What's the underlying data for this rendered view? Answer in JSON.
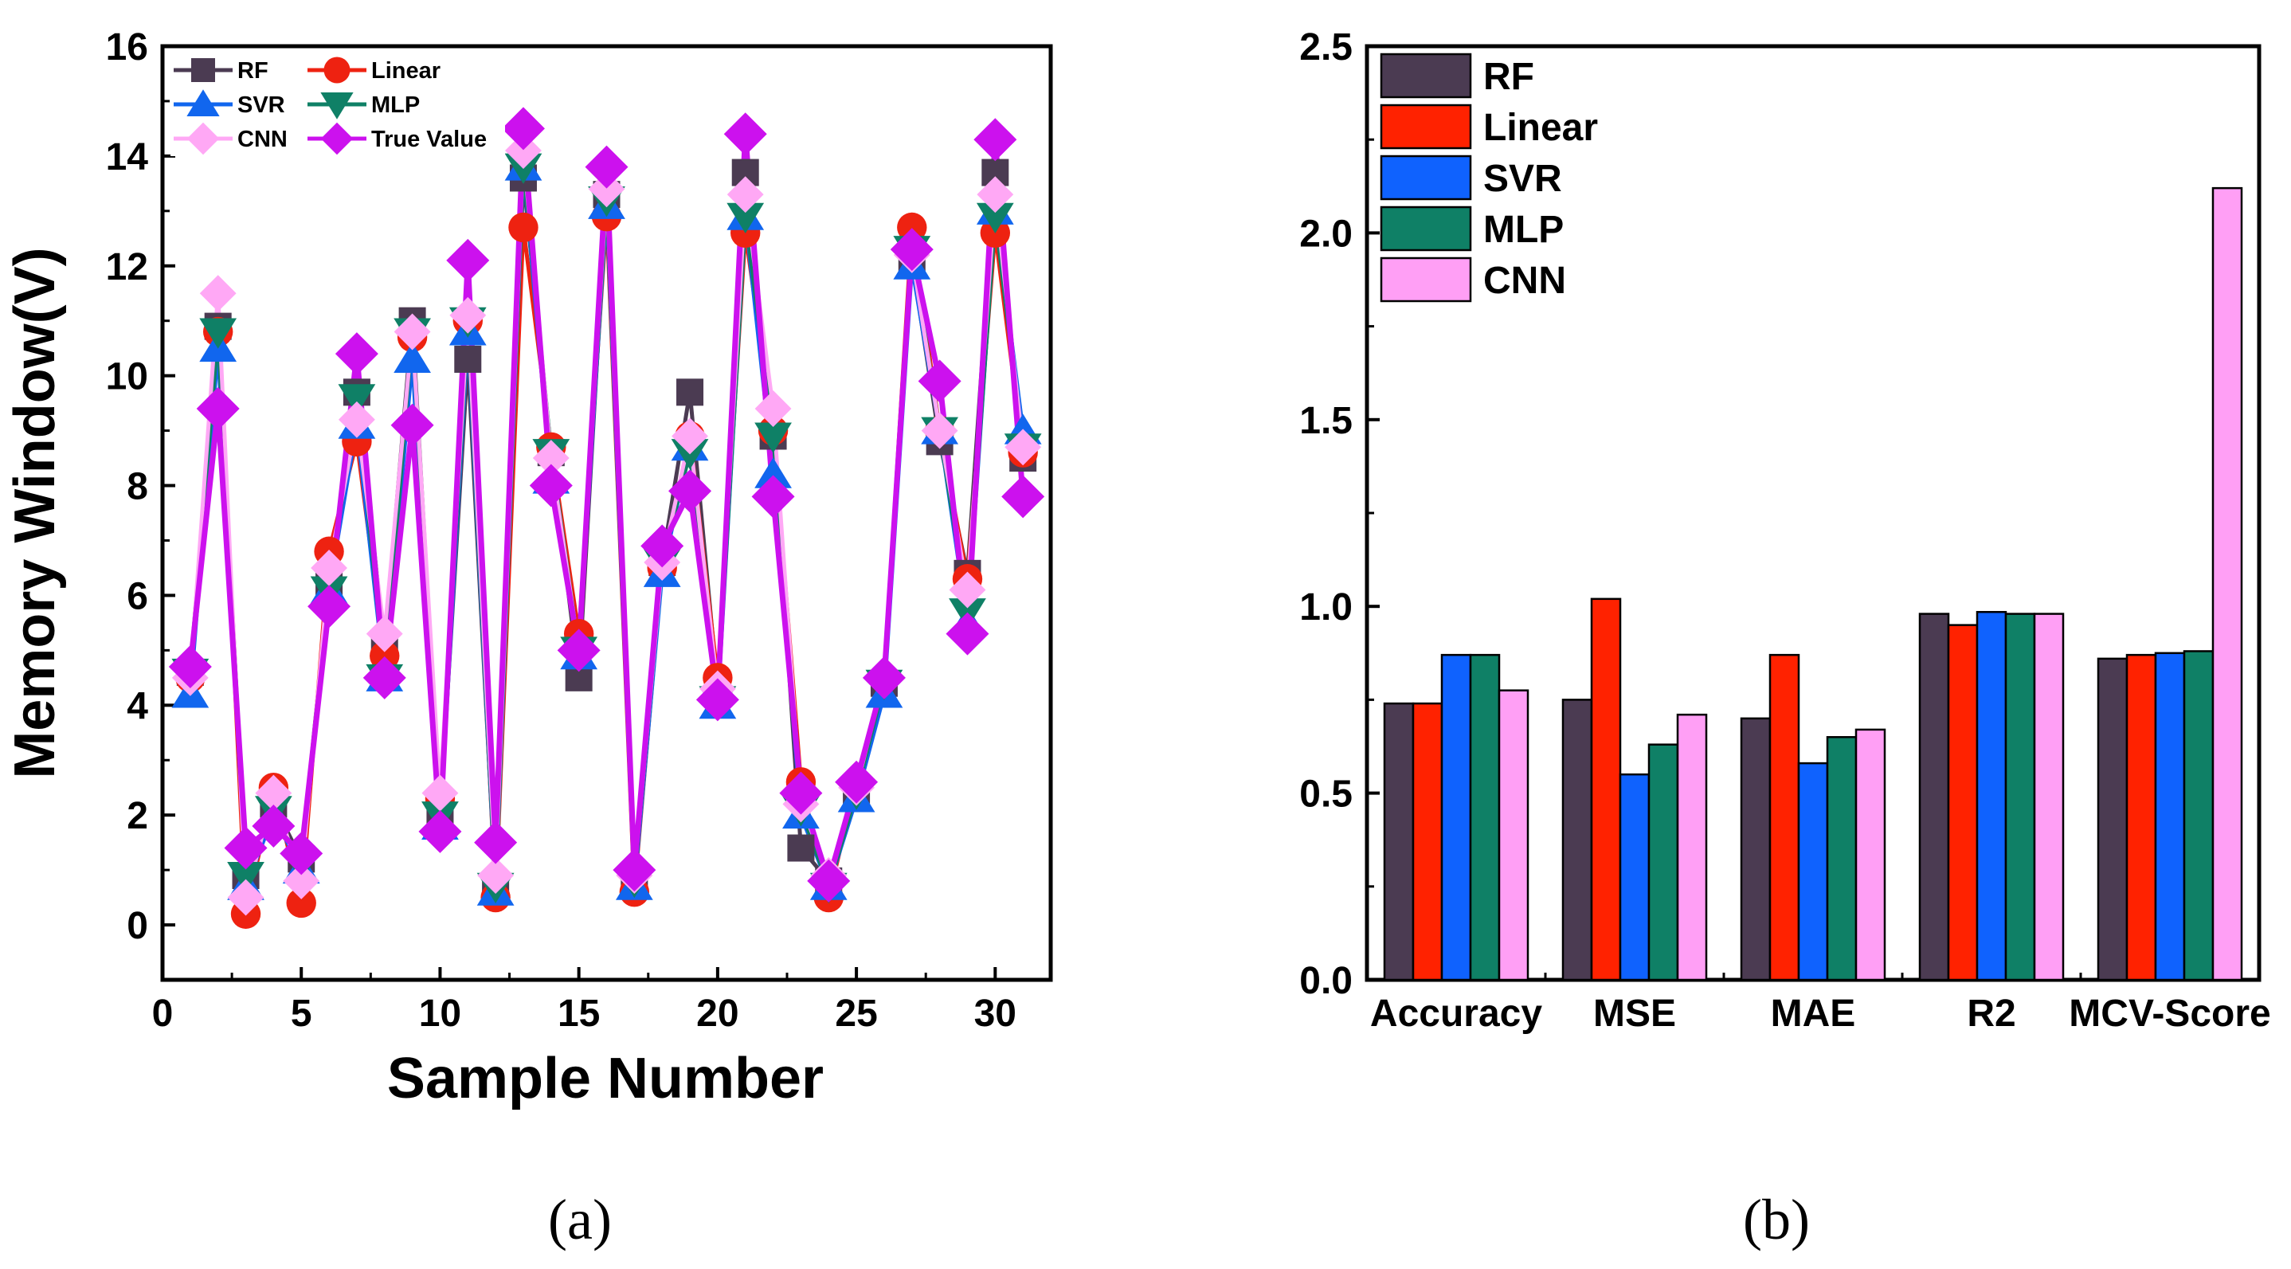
{
  "chart_data": [
    {
      "type": "line",
      "panel_caption": "(a)",
      "xlabel": "Sample Number",
      "ylabel": "Memory Window(V)",
      "xlim": [
        0,
        32
      ],
      "ylim": [
        -1,
        16
      ],
      "xticks": [
        0,
        5,
        10,
        15,
        20,
        25,
        30
      ],
      "yticks": [
        0,
        2,
        4,
        6,
        8,
        10,
        12,
        14,
        16
      ],
      "x": [
        1,
        2,
        3,
        4,
        5,
        6,
        7,
        8,
        9,
        10,
        11,
        12,
        13,
        14,
        15,
        16,
        17,
        18,
        19,
        20,
        21,
        22,
        23,
        24,
        25,
        26,
        27,
        28,
        29,
        30,
        31
      ],
      "legend_columns": 2,
      "series": [
        {
          "name": "RF",
          "color": "#4b3b52",
          "marker": "square",
          "values": [
            4.6,
            10.9,
            0.9,
            2.2,
            1.2,
            6.2,
            9.7,
            5.1,
            11.0,
            2.0,
            10.3,
            0.7,
            13.6,
            8.6,
            4.5,
            13.3,
            0.8,
            6.6,
            9.7,
            4.3,
            13.7,
            8.9,
            1.4,
            0.8,
            2.4,
            4.4,
            12.1,
            8.8,
            6.4,
            13.7,
            8.5
          ]
        },
        {
          "name": "Linear",
          "color": "#ee2211",
          "marker": "circle",
          "values": [
            4.5,
            10.8,
            0.2,
            2.5,
            0.4,
            6.8,
            8.8,
            4.9,
            10.7,
            2.3,
            11.0,
            0.5,
            12.7,
            8.7,
            5.3,
            12.9,
            0.6,
            6.5,
            8.9,
            4.5,
            12.6,
            9.0,
            2.6,
            0.5,
            2.6,
            4.5,
            12.7,
            9.0,
            6.3,
            12.6,
            8.6
          ]
        },
        {
          "name": "SVR",
          "color": "#1166ee",
          "marker": "triangle-up",
          "values": [
            4.2,
            10.5,
            0.7,
            2.0,
            1.0,
            6.1,
            9.1,
            4.5,
            10.3,
            1.8,
            10.8,
            0.6,
            13.8,
            8.1,
            4.9,
            13.1,
            0.7,
            6.4,
            8.7,
            4.0,
            12.9,
            8.2,
            2.0,
            0.7,
            2.3,
            4.2,
            12.0,
            9.0,
            5.5,
            13.0,
            9.0
          ]
        },
        {
          "name": "MLP",
          "color": "#0f8066",
          "marker": "triangle-down",
          "values": [
            4.6,
            10.8,
            0.9,
            2.1,
            1.1,
            6.1,
            9.6,
            4.5,
            10.8,
            2.0,
            11.0,
            0.7,
            13.8,
            8.6,
            5.0,
            13.2,
            0.8,
            6.6,
            8.6,
            4.1,
            12.9,
            8.9,
            2.1,
            0.7,
            2.4,
            4.4,
            12.3,
            9.0,
            5.7,
            12.9,
            8.7
          ]
        },
        {
          "name": "CNN",
          "color": "#ffa8f5",
          "marker": "diamond",
          "values": [
            4.5,
            11.5,
            0.5,
            2.4,
            0.8,
            6.5,
            9.2,
            5.3,
            10.8,
            2.4,
            11.1,
            0.9,
            14.1,
            8.5,
            5.0,
            13.4,
            0.9,
            6.6,
            8.9,
            4.3,
            13.3,
            9.4,
            2.2,
            0.9,
            2.5,
            4.5,
            12.2,
            9.0,
            6.1,
            13.3,
            8.7
          ]
        },
        {
          "name": "True Value",
          "color": "#cc11ee",
          "marker": "diamond",
          "values": [
            4.7,
            9.4,
            1.4,
            1.8,
            1.3,
            5.8,
            10.4,
            4.5,
            9.1,
            1.7,
            12.1,
            1.5,
            14.5,
            8.0,
            5.0,
            13.8,
            1.0,
            6.9,
            7.9,
            4.1,
            14.4,
            7.8,
            2.4,
            0.8,
            2.6,
            4.5,
            12.3,
            9.9,
            5.3,
            14.3,
            7.8
          ]
        }
      ]
    },
    {
      "type": "bar",
      "panel_caption": "(b)",
      "categories": [
        "Accuracy",
        "MSE",
        "MAE",
        "R2",
        "MCV-Score"
      ],
      "ylim": [
        0,
        2.5
      ],
      "yticks": [
        "0.0",
        "0.5",
        "1.0",
        "1.5",
        "2.0",
        "2.5"
      ],
      "xlabel": "",
      "ylabel": "",
      "series": [
        {
          "name": "RF",
          "color": "#4b3b52",
          "values": [
            0.74,
            0.75,
            0.7,
            0.98,
            0.86
          ]
        },
        {
          "name": "Linear",
          "color": "#ff2200",
          "values": [
            0.74,
            1.02,
            0.87,
            0.95,
            0.87
          ]
        },
        {
          "name": "SVR",
          "color": "#0f62fe",
          "values": [
            0.87,
            0.55,
            0.58,
            0.985,
            0.875
          ]
        },
        {
          "name": "MLP",
          "color": "#0f8066",
          "values": [
            0.87,
            0.63,
            0.65,
            0.98,
            0.88
          ]
        },
        {
          "name": "CNN",
          "color": "#ff9ff5",
          "values": [
            0.775,
            0.71,
            0.67,
            0.98,
            2.12
          ]
        }
      ]
    }
  ]
}
